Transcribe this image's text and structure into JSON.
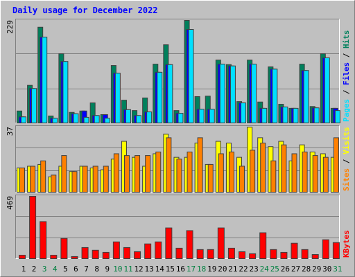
{
  "chart_data": [
    {
      "type": "bar",
      "title": "Daily usage for December 2022",
      "ylim": [
        0,
        229
      ],
      "yticks": [
        229
      ],
      "grid": true,
      "legend_separator": " / ",
      "series": [
        {
          "name": "Hits",
          "color": "#00805c",
          "values": [
            28,
            85,
            214,
            17,
            155,
            25,
            28,
            46,
            20,
            129,
            52,
            29,
            57,
            132,
            175,
            29,
            229,
            60,
            61,
            141,
            131,
            49,
            141,
            48,
            126,
            43,
            34,
            132,
            38,
            155,
            34
          ]
        },
        {
          "name": "Files",
          "color": "#0000ff",
          "values": [
            15,
            78,
            192,
            12,
            138,
            22,
            28,
            18,
            20,
            112,
            31,
            18,
            26,
            114,
            131,
            23,
            209,
            32,
            32,
            132,
            128,
            46,
            132,
            34,
            121,
            37,
            34,
            118,
            35,
            146,
            34
          ]
        },
        {
          "name": "Pages",
          "color": "#00e0ff",
          "values": [
            15,
            78,
            192,
            12,
            138,
            22,
            14,
            18,
            12,
            112,
            31,
            18,
            26,
            114,
            131,
            23,
            209,
            32,
            32,
            132,
            128,
            46,
            132,
            34,
            121,
            37,
            34,
            118,
            35,
            146,
            29
          ]
        }
      ]
    },
    {
      "type": "bar",
      "ylim": [
        0,
        37
      ],
      "yticks": [
        37
      ],
      "grid": true,
      "legend_separator": " / ",
      "series": [
        {
          "name": "Visits",
          "color": "#ffff00",
          "values": [
            14,
            15,
            16,
            9,
            15,
            12,
            15,
            14,
            13,
            19,
            29,
            20,
            15,
            22,
            33,
            20,
            20,
            28,
            16,
            29,
            28,
            20,
            37,
            31,
            26,
            29,
            18,
            27,
            23,
            22,
            20
          ]
        },
        {
          "name": "Sites",
          "color": "#ff8000",
          "values": [
            14,
            15,
            18,
            10,
            21,
            12,
            15,
            15,
            15,
            22,
            21,
            21,
            21,
            23,
            31,
            19,
            23,
            31,
            16,
            22,
            23,
            15,
            24,
            28,
            18,
            27,
            22,
            23,
            21,
            20,
            31
          ]
        }
      ]
    },
    {
      "type": "bar",
      "ylim": [
        0,
        469
      ],
      "yticks": [
        469
      ],
      "grid": true,
      "categories": [
        "1",
        "2",
        "3",
        "4",
        "5",
        "6",
        "7",
        "8",
        "9",
        "10",
        "11",
        "12",
        "13",
        "14",
        "15",
        "16",
        "17",
        "18",
        "19",
        "20",
        "21",
        "22",
        "23",
        "24",
        "25",
        "26",
        "27",
        "28",
        "29",
        "30",
        "31"
      ],
      "category_colors": [
        "#000000",
        "#000000",
        "#008040",
        "#008040",
        "#000000",
        "#000000",
        "#000000",
        "#000000",
        "#000000",
        "#008040",
        "#008040",
        "#000000",
        "#000000",
        "#000000",
        "#000000",
        "#000000",
        "#008040",
        "#008040",
        "#000000",
        "#000000",
        "#000000",
        "#000000",
        "#000000",
        "#008040",
        "#008040",
        "#000000",
        "#000000",
        "#000000",
        "#000000",
        "#000000",
        "#008040"
      ],
      "series": [
        {
          "name": "KBytes",
          "color": "#ff0000",
          "values": [
            31,
            469,
            281,
            31,
            156,
            21,
            88,
            68,
            52,
            130,
            88,
            57,
            115,
            130,
            234,
            83,
            214,
            73,
            73,
            234,
            83,
            57,
            42,
            198,
            73,
            52,
            120,
            73,
            36,
            146,
            125
          ]
        }
      ]
    }
  ]
}
